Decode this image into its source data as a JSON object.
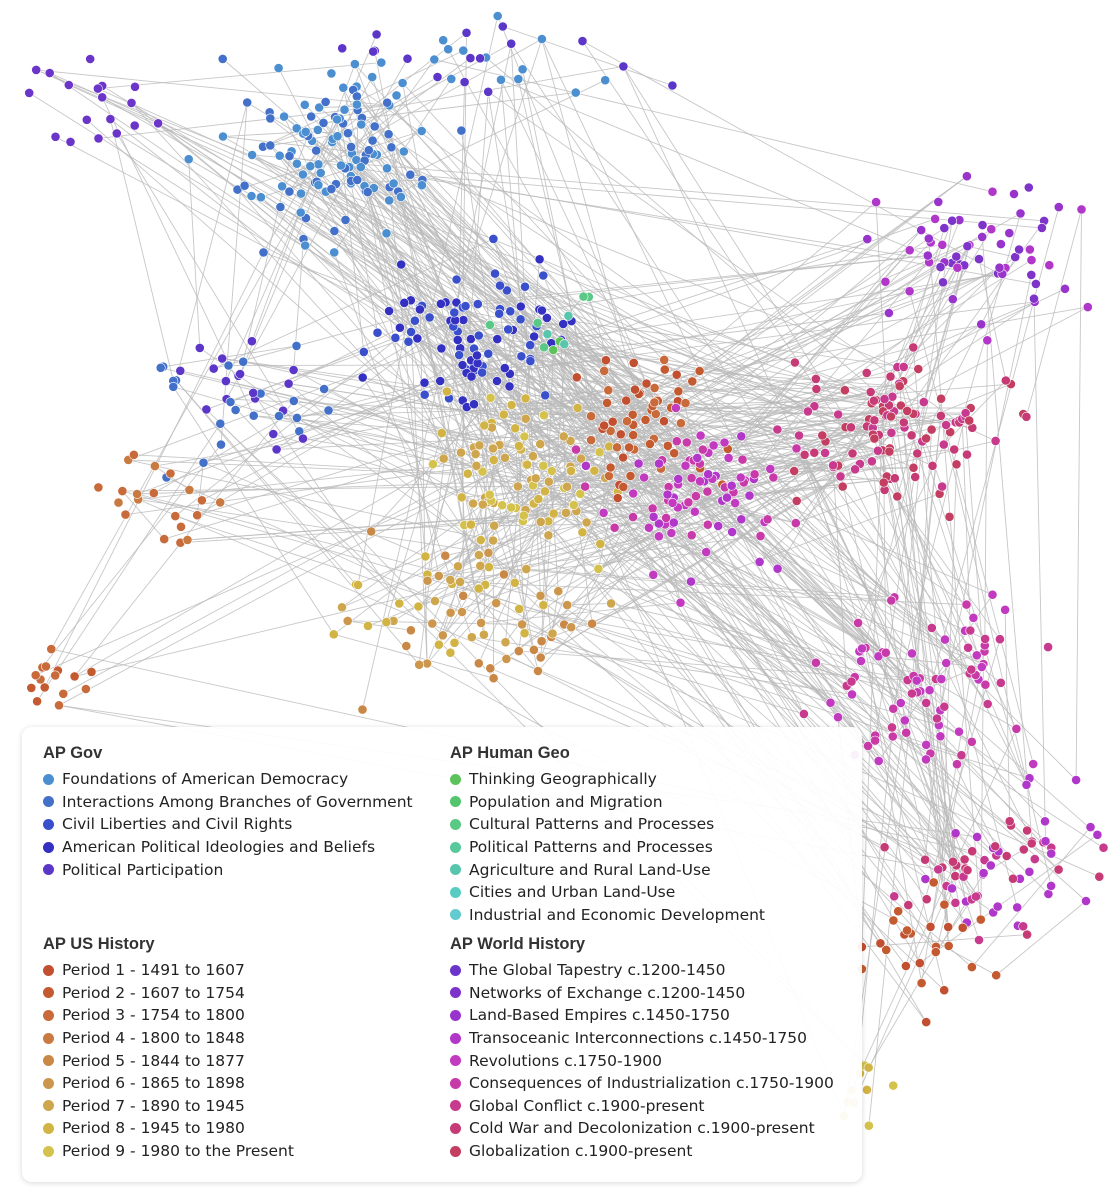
{
  "legend": {
    "groups": [
      {
        "title": "AP Gov",
        "items": [
          {
            "label": "Foundations of American Democracy",
            "color": "#4b8fd1"
          },
          {
            "label": "Interactions Among Branches of Government",
            "color": "#4370c9"
          },
          {
            "label": "Civil Liberties and Civil Rights",
            "color": "#3a4fcc"
          },
          {
            "label": "American Political Ideologies and Beliefs",
            "color": "#3431c2"
          },
          {
            "label": "Political Participation",
            "color": "#5b36c9"
          }
        ]
      },
      {
        "title": "AP Human Geo",
        "items": [
          {
            "label": "Thinking Geographically",
            "color": "#5cc25a"
          },
          {
            "label": "Population and Migration",
            "color": "#55c46e"
          },
          {
            "label": "Cultural Patterns and Processes",
            "color": "#5ac985"
          },
          {
            "label": "Political Patterns and Processes",
            "color": "#58c99a"
          },
          {
            "label": "Agriculture and Rural Land-Use",
            "color": "#57c6ad"
          },
          {
            "label": "Cities and Urban Land-Use",
            "color": "#58ccc0"
          },
          {
            "label": "Industrial and Economic Development",
            "color": "#62cbd0"
          }
        ]
      },
      {
        "title": "AP US History",
        "items": [
          {
            "label": "Period 1 - 1491 to 1607",
            "color": "#c14f30"
          },
          {
            "label": "Period 2 - 1607 to 1754",
            "color": "#c45a30"
          },
          {
            "label": "Period 3 - 1754 to 1800",
            "color": "#c86a3a"
          },
          {
            "label": "Period 4 - 1800 to 1848",
            "color": "#c87a40"
          },
          {
            "label": "Period 5 - 1844 to 1877",
            "color": "#c98845"
          },
          {
            "label": "Period 6 - 1865 to 1898",
            "color": "#cc974c"
          },
          {
            "label": "Period 7 - 1890 to 1945",
            "color": "#cea64e"
          },
          {
            "label": "Period 8 - 1945 to 1980",
            "color": "#d2b445"
          },
          {
            "label": "Period 9 - 1980 to the Present",
            "color": "#d4c24c"
          }
        ]
      },
      {
        "title": "AP World History",
        "items": [
          {
            "label": "The Global Tapestry c.1200-1450",
            "color": "#6a35c8"
          },
          {
            "label": "Networks of Exchange c.1200-1450",
            "color": "#7e34c9"
          },
          {
            "label": "Land-Based Empires c.1450-1750",
            "color": "#9834cc"
          },
          {
            "label": "Transoceanic Interconnections c.1450-1750",
            "color": "#b037c9"
          },
          {
            "label": "Revolutions c.1750-1900",
            "color": "#c23ac0"
          },
          {
            "label": "Consequences of Industrialization c.1750-1900",
            "color": "#c93aa9"
          },
          {
            "label": "Global Conflict c.1900-present",
            "color": "#c73a8e"
          },
          {
            "label": "Cold War and Decolonization c.1900-present",
            "color": "#c63b75"
          },
          {
            "label": "Globalization c.1900-present",
            "color": "#c33e60"
          }
        ]
      }
    ]
  }
}
